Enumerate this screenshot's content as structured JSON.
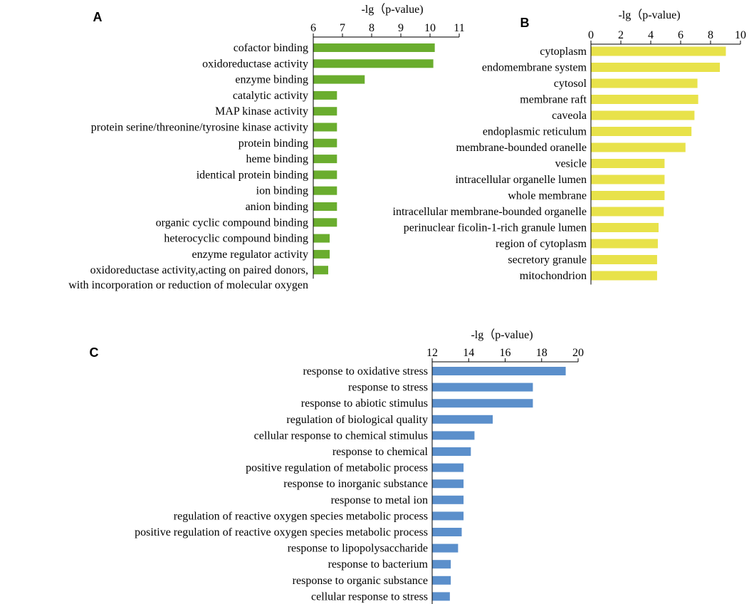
{
  "chart_data": [
    {
      "type": "bar",
      "orientation": "horizontal",
      "panel_label": "A",
      "title": "",
      "xlabel": "-lg（p-value)",
      "ylabel": "",
      "xlim": [
        6,
        11
      ],
      "ticks": [
        "6",
        "7",
        "8",
        "9",
        "10",
        "11"
      ],
      "color": "#6aad2e",
      "categories": [
        [
          "cofactor binding"
        ],
        [
          "oxidoreductase activity"
        ],
        [
          "enzyme binding"
        ],
        [
          "catalytic activity"
        ],
        [
          "MAP kinase activity"
        ],
        [
          "protein serine/threonine/tyrosine kinase activity"
        ],
        [
          "protein binding"
        ],
        [
          "heme  binding"
        ],
        [
          "identical protein binding"
        ],
        [
          "ion binding"
        ],
        [
          "anion binding"
        ],
        [
          "organic cyclic compound binding"
        ],
        [
          "heterocyclic compound binding"
        ],
        [
          "enzyme regulator activity"
        ],
        [
          "oxidoreductase activity,acting on paired donors,",
          "with incorporation or reduction of molecular oxygen"
        ]
      ],
      "values": [
        10.15,
        10.1,
        7.75,
        6.8,
        6.8,
        6.8,
        6.8,
        6.8,
        6.8,
        6.8,
        6.8,
        6.8,
        6.55,
        6.55,
        6.5
      ]
    },
    {
      "type": "bar",
      "orientation": "horizontal",
      "panel_label": "B",
      "title": "",
      "xlabel": "-lg（p-value)",
      "ylabel": "",
      "xlim": [
        0,
        10
      ],
      "ticks": [
        "0",
        "2",
        "4",
        "6",
        "8",
        "10"
      ],
      "color": "#e8e24a",
      "categories": [
        [
          "cytoplasm"
        ],
        [
          "endomembrane system"
        ],
        [
          "cytosol"
        ],
        [
          "membrane raft"
        ],
        [
          "caveola"
        ],
        [
          "endoplasmic reticulum"
        ],
        [
          "membrane-bounded oranelle"
        ],
        [
          "vesicle"
        ],
        [
          "intracellular organelle lumen"
        ],
        [
          "whole membrane"
        ],
        [
          "intracellular membrane-bounded organelle"
        ],
        [
          "perinuclear  ficolin-1-rich granule lumen"
        ],
        [
          "region of cytoplasm"
        ],
        [
          "secretory granule"
        ],
        [
          "mitochondrion"
        ]
      ],
      "values": [
        9.0,
        8.6,
        7.1,
        7.15,
        6.9,
        6.7,
        6.3,
        4.9,
        4.9,
        4.9,
        4.85,
        4.5,
        4.45,
        4.4,
        4.4
      ]
    },
    {
      "type": "bar",
      "orientation": "horizontal",
      "panel_label": "C",
      "title": "",
      "xlabel": "-lg（p-value)",
      "ylabel": "",
      "xlim": [
        12,
        20
      ],
      "ticks": [
        "12",
        "14",
        "16",
        "18",
        "20"
      ],
      "color": "#5b8fcb",
      "categories": [
        [
          "response to oxidative stress"
        ],
        [
          "response to stress"
        ],
        [
          "response to abiotic stimulus"
        ],
        [
          "regulation of biological quality"
        ],
        [
          "cellular response to chemical stimulus"
        ],
        [
          "response to chemical"
        ],
        [
          "positive regulation of metabolic process"
        ],
        [
          "response to inorganic substance"
        ],
        [
          "response to metal ion"
        ],
        [
          "regulation of reactive oxygen species metabolic process"
        ],
        [
          "positive regulation of reactive oxygen species metabolic process"
        ],
        [
          "response to lipopolysaccharide"
        ],
        [
          "response to bacterium"
        ],
        [
          "response to organic substance"
        ],
        [
          "cellular response to stress"
        ]
      ],
      "values": [
        19.3,
        17.5,
        17.5,
        15.3,
        14.3,
        14.1,
        13.7,
        13.7,
        13.7,
        13.7,
        13.6,
        13.4,
        13.0,
        13.0,
        12.95
      ]
    }
  ]
}
